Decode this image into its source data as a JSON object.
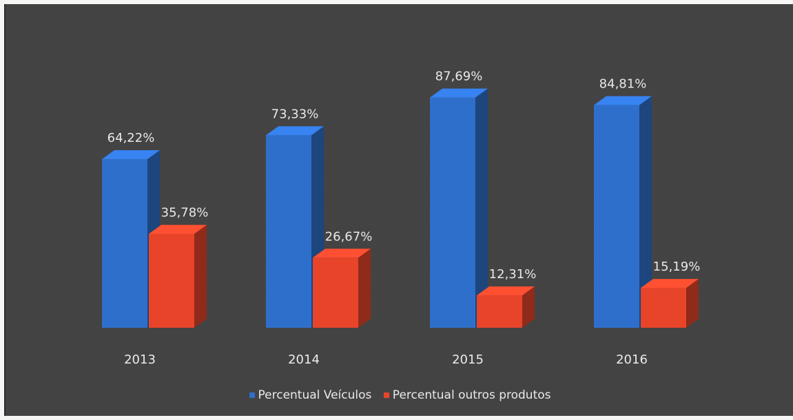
{
  "chart_data": {
    "type": "bar",
    "categories": [
      "2013",
      "2014",
      "2015",
      "2016"
    ],
    "series": [
      {
        "name": "Percentual Veículos",
        "values": [
          64.22,
          73.33,
          87.69,
          84.81
        ],
        "labels": [
          "64,22%",
          "73,33%",
          "87,69%",
          "84,81%"
        ],
        "color": "#2f6fcc"
      },
      {
        "name": "Percentual outros produtos",
        "values": [
          35.78,
          26.67,
          12.31,
          15.19
        ],
        "labels": [
          "35,78%",
          "26,67%",
          "12,31%",
          "15,19%"
        ],
        "color": "#e8442a"
      }
    ],
    "ylim": [
      0,
      100
    ],
    "grid": false,
    "legend_position": "bottom",
    "style": "3d-column"
  }
}
